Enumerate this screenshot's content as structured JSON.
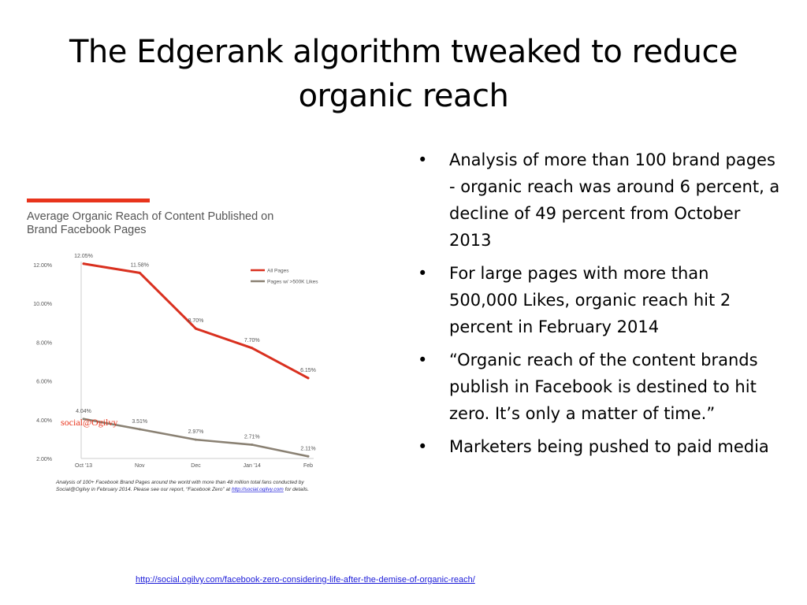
{
  "slide": {
    "title_line1": "The Edgerank algorithm tweaked to reduce",
    "title_line2": "organic reach",
    "bullets": [
      "Analysis of more than 100 brand pages - organic reach was around 6 percent, a decline of 49 percent from October 2013",
      "For large pages with more than 500,000 Likes, organic reach hit 2 percent in February 2014",
      "“Organic reach of the content brands publish in Facebook is destined to hit zero. It’s only a matter of time.”",
      "Marketers being pushed to paid media"
    ],
    "bullet_glyph": "•",
    "source_url": "http://social.ogilvy.com/facebook-zero-considering-life-after-the-demise-of-organic-reach/"
  },
  "chart_data": {
    "type": "line",
    "title": "Average Organic Reach of Content Published on Brand Facebook Pages",
    "title_line1": "Average Organic Reach of Content Published on",
    "title_line2": "Brand Facebook Pages",
    "categories": [
      "Oct '13",
      "Nov",
      "Dec",
      "Jan '14",
      "Feb"
    ],
    "series": [
      {
        "name": "All Pages",
        "color": "#d9301f",
        "values": [
          12.05,
          11.58,
          8.7,
          7.7,
          6.15
        ],
        "labels": [
          "12.05%",
          "11.58%",
          "8.70%",
          "7.70%",
          "6.15%"
        ]
      },
      {
        "name": "Pages w/ >500K Likes",
        "color": "#8a8173",
        "values": [
          4.04,
          3.51,
          2.97,
          2.71,
          2.11
        ],
        "labels": [
          "4.04%",
          "3.51%",
          "2.97%",
          "2.71%",
          "2.11%"
        ]
      }
    ],
    "ylim": [
      2,
      12
    ],
    "yticks": [
      2,
      4,
      6,
      8,
      10,
      12
    ],
    "ytick_labels": [
      "2.00%",
      "4.00%",
      "6.00%",
      "8.00%",
      "10.00%",
      "12.00%"
    ],
    "legend_position": "top-right",
    "grid": false,
    "brand": "social@Ogilvy",
    "footnote_line1": "Analysis of 100+ Facebook Brand Pages around the world with more than 48 million total fans conducted by",
    "footnote_line2_pre": "Social@Ogilvy in February 2014. Please see our report, “Facebook Zero” at ",
    "footnote_line2_link": "http://social.ogilvy.com",
    "footnote_line2_post": " for details.",
    "accent_color": "#e8341c"
  }
}
